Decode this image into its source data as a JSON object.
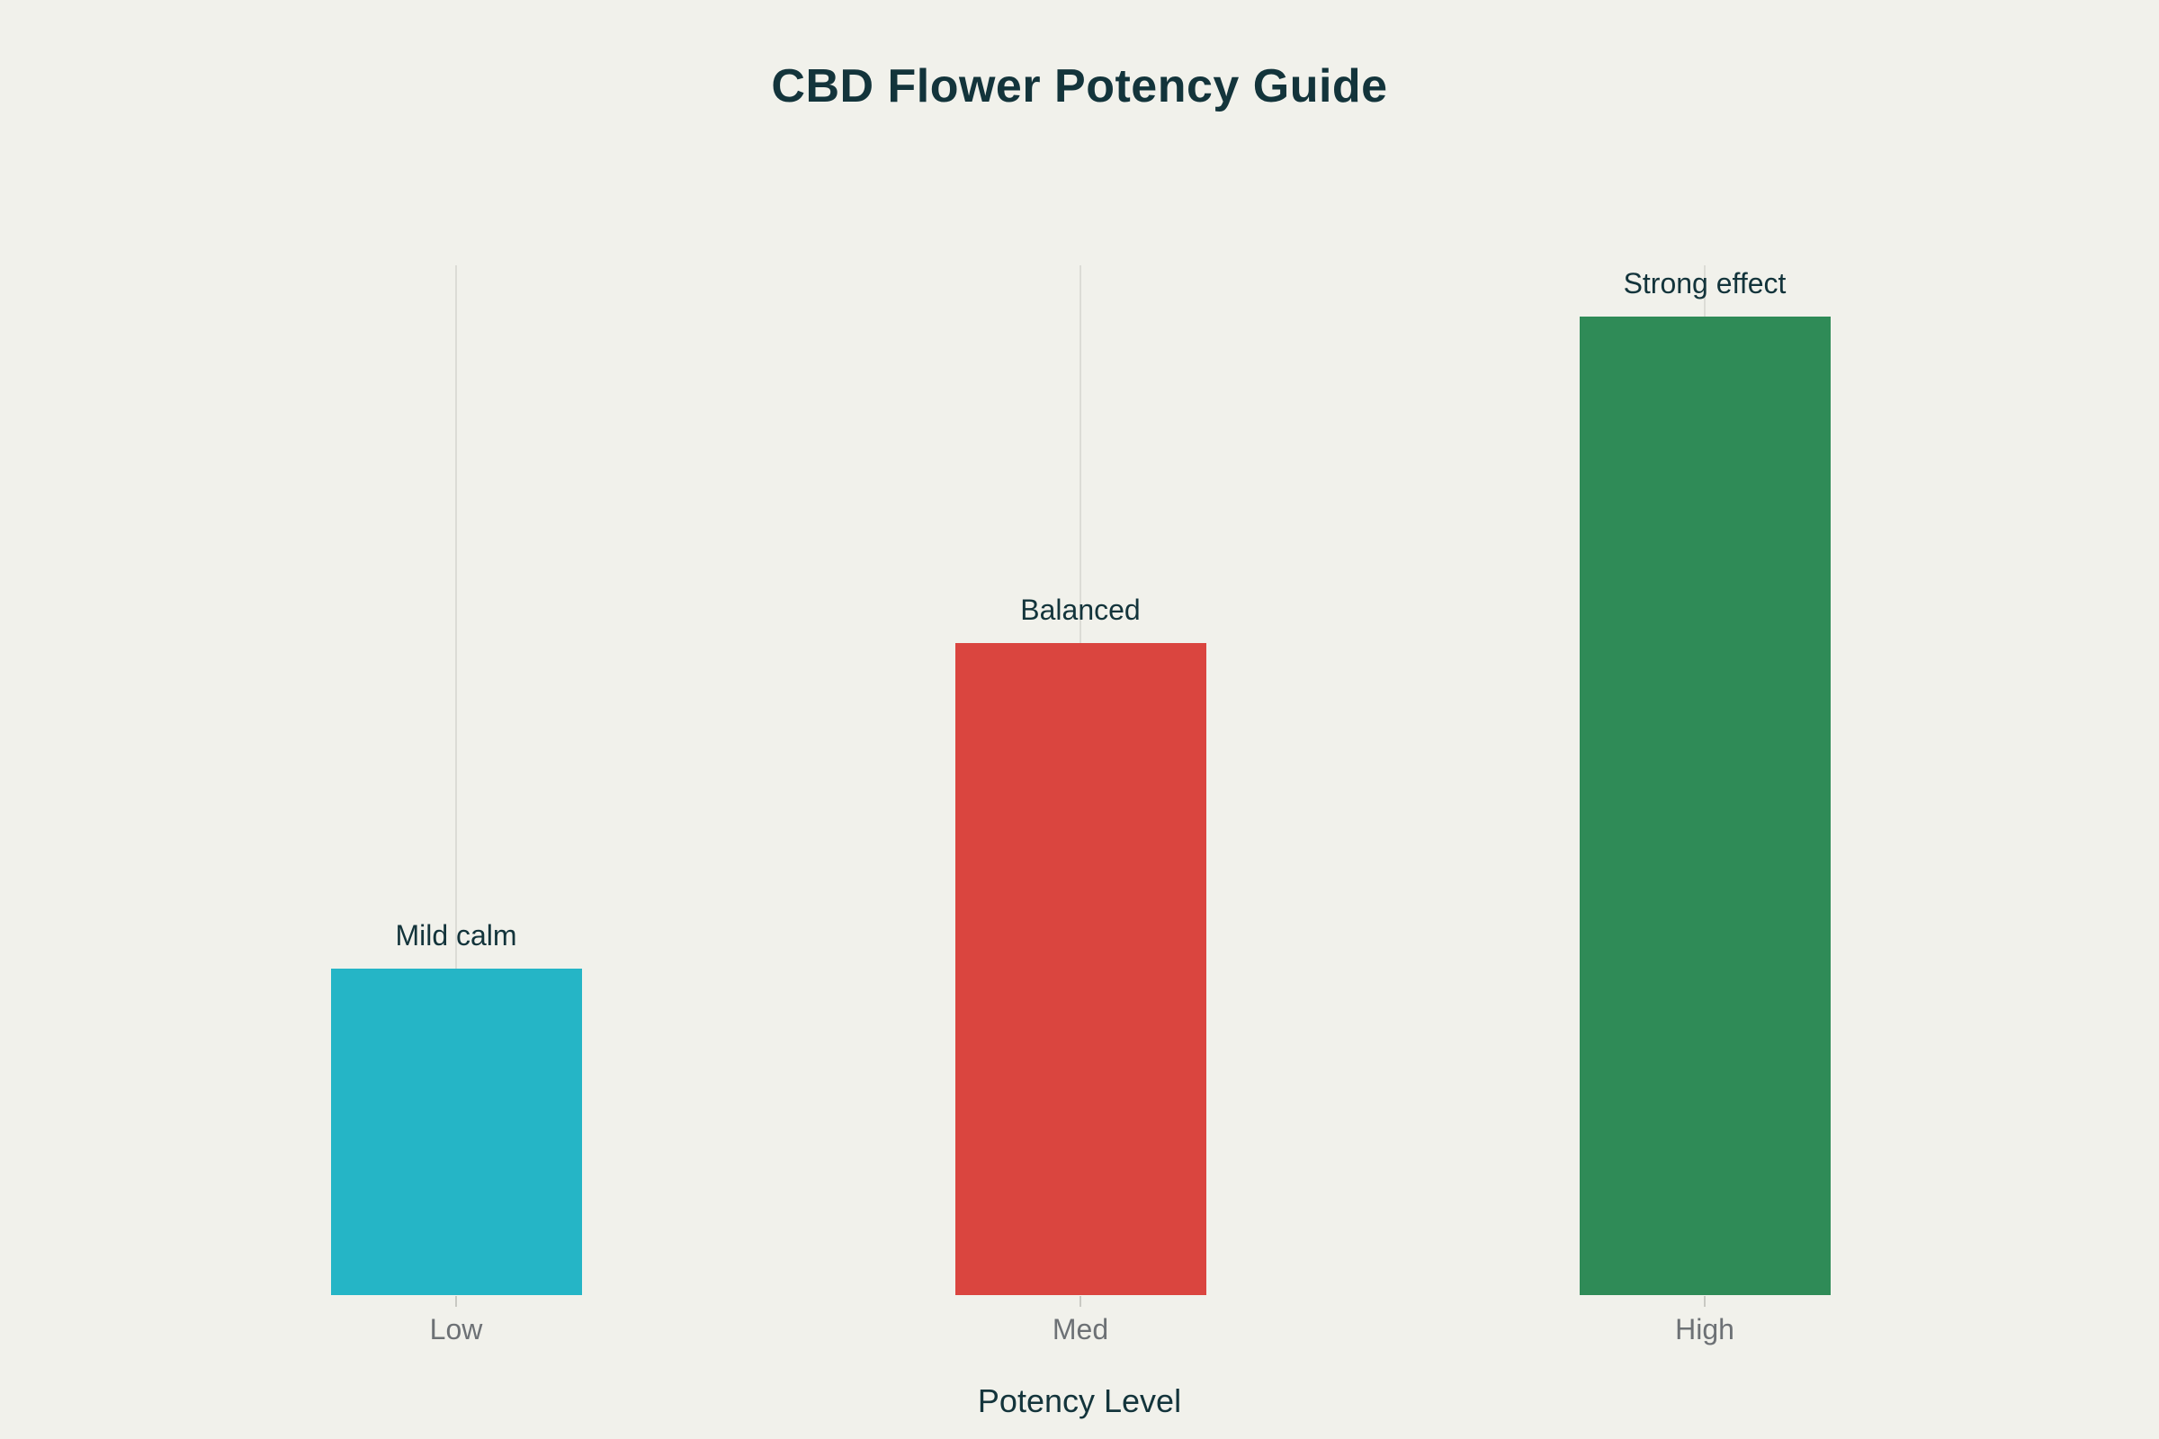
{
  "title": {
    "text": "CBD Flower Potency Guide"
  },
  "x_axis": {
    "title": "Potency Level",
    "tick_labels": [
      "Low",
      "Med",
      "High"
    ]
  },
  "colors": {
    "background": "#f1f1eb",
    "text_dark": "#13343b",
    "tick_label_gray": "#6d7175",
    "gridline": "#dcdcd6",
    "bar_low": "#25b5c6",
    "bar_med": "#da453f",
    "bar_high": "#2f8b57"
  },
  "chart_data": {
    "type": "bar",
    "title": "CBD Flower Potency Guide",
    "xlabel": "Potency Level",
    "ylabel": "",
    "categories": [
      "Low",
      "Med",
      "High"
    ],
    "values": [
      1,
      2,
      3
    ],
    "bar_labels": [
      "Mild calm",
      "Balanced",
      "Strong effect"
    ],
    "bar_colors": [
      "#25b5c6",
      "#da453f",
      "#2f8b57"
    ],
    "ylim": [
      0,
      3.16
    ],
    "grid": "vertical-gridlines-at-category-centers",
    "legend_position": "none",
    "y_axis_ticks_visible": false
  }
}
